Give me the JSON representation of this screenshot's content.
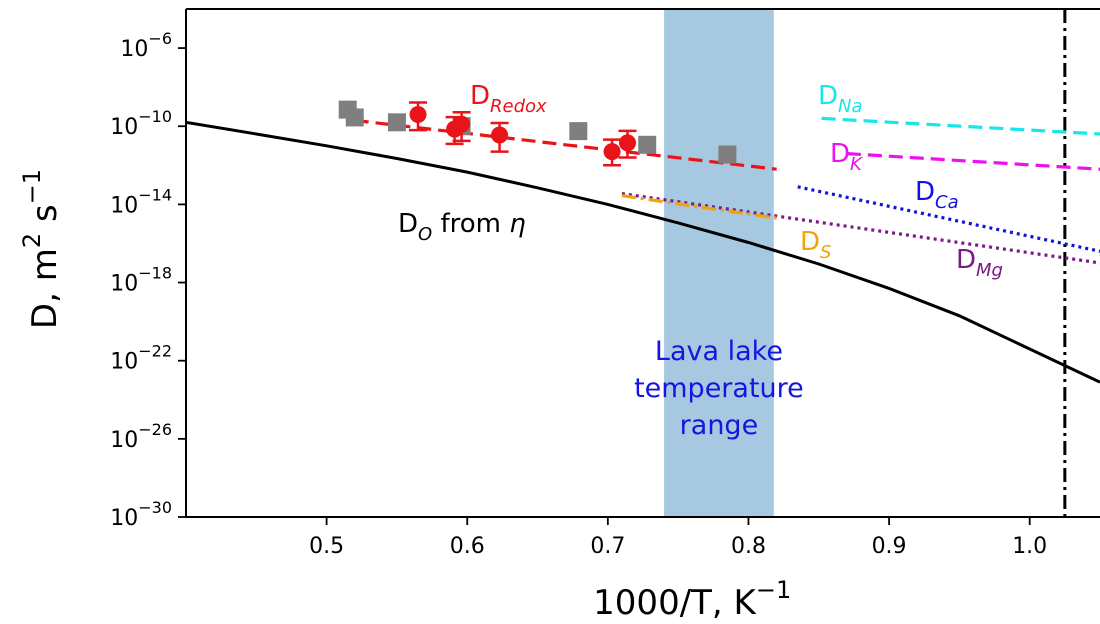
{
  "chart_data": {
    "type": "line",
    "xlabel": "1000/T, K",
    "xlabel_sup": "−1",
    "ylabel": "D, m",
    "ylabel_sup1": "2",
    "ylabel_mid": " s",
    "ylabel_sup2": "−1",
    "xlim": [
      0.4,
      1.05
    ],
    "ylim_log10": [
      -30,
      -4
    ],
    "y_scale": "log",
    "grid": false,
    "x_ticks": [
      {
        "value": 0.5,
        "label": "0.5"
      },
      {
        "value": 0.6,
        "label": "0.6"
      },
      {
        "value": 0.7,
        "label": "0.7"
      },
      {
        "value": 0.8,
        "label": "0.8"
      },
      {
        "value": 0.9,
        "label": "0.9"
      },
      {
        "value": 1.0,
        "label": "1.0"
      }
    ],
    "y_ticks": [
      {
        "exp": -30,
        "base": "10",
        "sup": "−30"
      },
      {
        "exp": -26,
        "base": "10",
        "sup": "−26"
      },
      {
        "exp": -22,
        "base": "10",
        "sup": "−22"
      },
      {
        "exp": -18,
        "base": "10",
        "sup": "−18"
      },
      {
        "exp": -14,
        "base": "10",
        "sup": "−14"
      },
      {
        "exp": -10,
        "base": "10",
        "sup": "−10"
      },
      {
        "exp": -6,
        "base": "10",
        "sup": "−6"
      }
    ],
    "band": {
      "x": [
        0.74,
        0.818
      ],
      "color": "#a6c8e0",
      "label_lines": [
        "Lava lake",
        "temperature",
        "range"
      ]
    },
    "vline": {
      "x": 1.025,
      "style": "dash-dot",
      "color": "#000000"
    },
    "series": [
      {
        "key": "DO",
        "label_main": "D",
        "label_sub": "O",
        "label_tail": " from η",
        "color": "#000000",
        "style": "solid",
        "x": [
          0.4,
          0.45,
          0.5,
          0.55,
          0.6,
          0.65,
          0.7,
          0.75,
          0.8,
          0.85,
          0.9,
          0.95,
          1.0,
          1.05
        ],
        "log10_y": [
          -9.8,
          -10.4,
          -11.0,
          -11.65,
          -12.35,
          -13.15,
          -14.0,
          -14.95,
          -15.95,
          -17.05,
          -18.3,
          -19.7,
          -21.4,
          -23.1
        ]
      },
      {
        "key": "Redox",
        "label_main": "D",
        "label_sub": "Redox",
        "color": "#e8141a",
        "style": "dashed",
        "x": [
          0.52,
          0.82
        ],
        "log10_y": [
          -9.7,
          -12.2
        ]
      },
      {
        "key": "Na",
        "label_main": "D",
        "label_sub": "Na",
        "color": "#19e6ea",
        "style": "dashed",
        "x": [
          0.852,
          1.05
        ],
        "log10_y": [
          -9.6,
          -10.4
        ]
      },
      {
        "key": "K",
        "label_main": "D",
        "label_sub": "K",
        "color": "#ee10ee",
        "style": "dashed",
        "x": [
          0.87,
          1.05
        ],
        "log10_y": [
          -11.4,
          -12.2
        ]
      },
      {
        "key": "Ca",
        "label_main": "D",
        "label_sub": "Ca",
        "color": "#1212e0",
        "style": "dotted",
        "x": [
          0.835,
          1.05
        ],
        "log10_y": [
          -13.1,
          -16.4
        ]
      },
      {
        "key": "Mg",
        "label_main": "D",
        "label_sub": "Mg",
        "color": "#7a1a86",
        "style": "dotted",
        "x": [
          0.71,
          1.05
        ],
        "log10_y": [
          -13.45,
          -17.0
        ]
      },
      {
        "key": "S",
        "label_main": "D",
        "label_sub": "S",
        "color": "#f2a20a",
        "style": "dashdot",
        "x": [
          0.71,
          0.82
        ],
        "log10_y": [
          -13.55,
          -14.7
        ]
      }
    ],
    "scatter_gray": {
      "color": "#7f7f7f",
      "x": [
        0.515,
        0.52,
        0.55,
        0.596,
        0.679,
        0.728,
        0.785
      ],
      "log10_y": [
        -9.15,
        -9.55,
        -9.8,
        -10.0,
        -10.25,
        -10.95,
        -11.45
      ]
    },
    "scatter_red": {
      "color": "#e8141a",
      "x": [
        0.565,
        0.591,
        0.596,
        0.623,
        0.703,
        0.714
      ],
      "log10_y": [
        -9.4,
        -10.15,
        -9.9,
        -10.45,
        -11.3,
        -10.85
      ],
      "err_low_log10": [
        -10.2,
        -10.9,
        -10.75,
        -11.3,
        -12.0,
        -11.6
      ]
    }
  }
}
